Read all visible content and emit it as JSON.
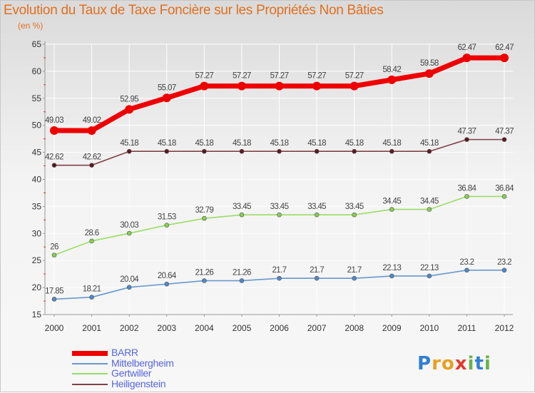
{
  "title": "Evolution du Taux de Taxe Foncière sur les Propriétés Non Bâties",
  "unit_label": "(en %)",
  "logo": {
    "text": "Proxiti",
    "letters": [
      {
        "ch": "P",
        "color": "#2f7fd3"
      },
      {
        "ch": "r",
        "color": "#e8a020"
      },
      {
        "ch": "o",
        "color": "#e8a020"
      },
      {
        "ch": "x",
        "color": "#e33b2e"
      },
      {
        "ch": "i",
        "color": "#6ab04c"
      },
      {
        "ch": "t",
        "color": "#2f7fd3"
      },
      {
        "ch": "i",
        "color": "#6ab04c"
      }
    ]
  },
  "chart_data": {
    "type": "line",
    "x": [
      "2000",
      "2001",
      "2002",
      "2003",
      "2004",
      "2005",
      "2006",
      "2007",
      "2008",
      "2009",
      "2010",
      "2011",
      "2012"
    ],
    "ylim": [
      15,
      65
    ],
    "yticks": [
      15,
      20,
      25,
      30,
      35,
      40,
      45,
      50,
      55,
      60,
      65
    ],
    "grid": true,
    "legend_position": "bottom-left",
    "series": [
      {
        "name": "BARR",
        "color": "#ee0000",
        "marker": "#ee0000",
        "width": 7,
        "values": [
          49.03,
          49.02,
          52.95,
          55.07,
          57.27,
          57.27,
          57.27,
          57.27,
          57.27,
          58.42,
          59.58,
          62.47,
          62.47
        ],
        "labels": [
          "49.03",
          "49.02",
          "52.95",
          "55.07",
          "57.27",
          "57.27",
          "57.27",
          "57.27",
          "57.27",
          "58.42",
          "59.58",
          "62.47",
          "62.47"
        ]
      },
      {
        "name": "Heiligenstein",
        "color": "#80404a",
        "marker": "#5a1a22",
        "width": 1.6,
        "values": [
          42.62,
          42.62,
          45.18,
          45.18,
          45.18,
          45.18,
          45.18,
          45.18,
          45.18,
          45.18,
          45.18,
          47.37,
          47.37
        ],
        "labels": [
          "42.62",
          "42.62",
          "45.18",
          "45.18",
          "45.18",
          "45.18",
          "45.18",
          "45.18",
          "45.18",
          "45.18",
          "45.18",
          "47.37",
          "47.37"
        ]
      },
      {
        "name": "Gertwiller",
        "color": "#99dd66",
        "marker": "#88cc55",
        "width": 1.6,
        "values": [
          26,
          28.6,
          30.03,
          31.53,
          32.79,
          33.45,
          33.45,
          33.45,
          33.45,
          34.45,
          34.45,
          36.84,
          36.84
        ],
        "labels": [
          "26",
          "28.6",
          "30.03",
          "31.53",
          "32.79",
          "33.45",
          "33.45",
          "33.45",
          "33.45",
          "34.45",
          "34.45",
          "36.84",
          "36.84"
        ]
      },
      {
        "name": "Mittelbergheim",
        "color": "#6699cc",
        "marker": "#4f88c6",
        "width": 1.6,
        "values": [
          17.85,
          18.21,
          20.04,
          20.64,
          21.26,
          21.26,
          21.7,
          21.7,
          21.7,
          22.13,
          22.13,
          23.2,
          23.2
        ],
        "labels": [
          "17.85",
          "18.21",
          "20.04",
          "20.64",
          "21.26",
          "21.26",
          "21.7",
          "21.7",
          "21.7",
          "22.13",
          "22.13",
          "23.2",
          "23.2"
        ]
      }
    ]
  },
  "legend": [
    {
      "name": "BARR",
      "color": "#ee0000",
      "thickness": 7
    },
    {
      "name": "Mittelbergheim",
      "color": "#6699cc",
      "thickness": 2
    },
    {
      "name": "Gertwiller",
      "color": "#99dd66",
      "thickness": 2
    },
    {
      "name": "Heiligenstein",
      "color": "#80404a",
      "thickness": 2
    }
  ]
}
